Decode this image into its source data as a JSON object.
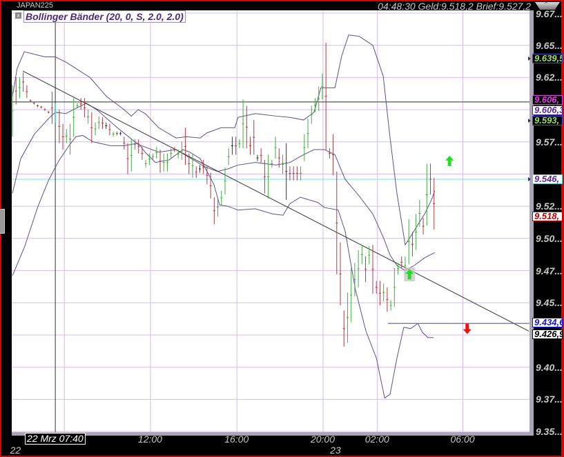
{
  "header": {
    "symbol": "JAPAN225",
    "quote": "04:48:30 Geld:9.518,2 Brief:9.527,2",
    "scroll_up_glyph": "^"
  },
  "indicator": {
    "title": "Bollinger Bänder (20, 0, S, 2.0, 2.0)",
    "close_glyph": "x"
  },
  "price_axis": {
    "labels": [
      {
        "text": "9.67...",
        "price": 9.675
      },
      {
        "text": "9.65...",
        "price": 9.65
      },
      {
        "text": "9.62...",
        "price": 9.625
      },
      {
        "text": "9.57...",
        "price": 9.575
      },
      {
        "text": "9.52...",
        "price": 9.525
      },
      {
        "text": "9.50...",
        "price": 9.5
      },
      {
        "text": "9.47...",
        "price": 9.475
      },
      {
        "text": "9.45...",
        "price": 9.45
      },
      {
        "text": "9.40...",
        "price": 9.4
      },
      {
        "text": "9.37...",
        "price": 9.375
      },
      {
        "text": "9.35...",
        "price": 9.35
      }
    ],
    "flags": [
      {
        "text": "9.639,5",
        "price": 9.6395,
        "color": "#9ee05a",
        "bg": "#000000",
        "border": "#4050c0",
        "marker": true
      },
      {
        "text": "9.606,",
        "price": 9.6075,
        "color": "#e040e0",
        "bg": "#000000",
        "border": "#e040e0",
        "marker": false
      },
      {
        "text": "9.606,3",
        "price": 9.6035,
        "color": "#5a2a9a",
        "bg": "#ffffff",
        "border": "#5a2a9a",
        "marker": false
      },
      {
        "text": "9.593,",
        "price": 9.5935,
        "color": "#9ee05a",
        "bg": "#000000",
        "border": "#4050c0",
        "marker": true
      },
      {
        "text": "9.546,",
        "price": 9.546,
        "color": "#5a2a9a",
        "bg": "#ffffff",
        "border": "#40d0e0",
        "marker": true
      },
      {
        "text": "9.518,",
        "price": 9.5182,
        "color": "#c00000",
        "bg": "#ffffff",
        "border": "#c00000",
        "marker": false
      },
      {
        "text": "9.434,6",
        "price": 9.4346,
        "color": "#1010e0",
        "bg": "#ffffff",
        "border": "#1010e0",
        "marker": false
      },
      {
        "text": "9.426,9",
        "price": 9.4255,
        "color": "#000000",
        "bg": "#ffffff",
        "border": "#000000",
        "marker": false
      }
    ]
  },
  "time_axis": {
    "ticks": [
      {
        "label": "12:00",
        "bar": 38.3
      },
      {
        "label": "16:00",
        "bar": 62.3
      },
      {
        "label": "20:00",
        "bar": 86.2
      },
      {
        "label": "02:00",
        "bar": 101.3
      },
      {
        "label": "06:00",
        "bar": 125
      }
    ],
    "extra_gridlines": [
      14.4
    ],
    "dates": [
      {
        "label": "22",
        "bar": 0.5
      },
      {
        "label": "23",
        "bar": 89.3
      }
    ],
    "crosshair_label": "22 Mrz 07:40"
  },
  "colors": {
    "up": "#3fae3f",
    "down": "#b23a3a",
    "flat": "#333333",
    "band": "#5e4f8a",
    "grid": "#d8b8f0",
    "border": "#e00000",
    "cyan_line": "#70e0f0"
  },
  "chart_data": {
    "type": "ohlc",
    "ylim": [
      9.35,
      9.675
    ],
    "grid": true,
    "bars": [
      [
        9.619,
        9.579,
        "up"
      ],
      [
        9.625,
        9.604,
        "down"
      ],
      [
        9.625,
        9.609,
        "up"
      ],
      [
        9.629,
        9.614,
        "down"
      ],
      [
        9.619,
        9.609,
        "down"
      ],
      [
        9.608,
        9.606,
        "down"
      ],
      [
        9.606,
        9.604,
        "down"
      ],
      [
        9.604,
        9.602,
        "down"
      ],
      [
        9.603,
        9.601,
        "down"
      ],
      [
        9.601,
        9.599,
        "down"
      ],
      [
        9.599,
        9.597,
        "down"
      ],
      [
        9.614,
        9.589,
        "down"
      ],
      [
        9.605,
        9.59,
        "cross"
      ],
      [
        9.6,
        9.574,
        "down"
      ],
      [
        9.589,
        9.569,
        "down"
      ],
      [
        9.585,
        9.574,
        "up"
      ],
      [
        9.589,
        9.565,
        "up"
      ],
      [
        9.609,
        9.579,
        "up"
      ],
      [
        9.605,
        9.601,
        "up"
      ],
      [
        9.609,
        9.6,
        "down"
      ],
      [
        9.609,
        9.594,
        "down"
      ],
      [
        9.6,
        9.589,
        "up"
      ],
      [
        9.598,
        9.574,
        "down"
      ],
      [
        9.59,
        9.58,
        "up"
      ],
      [
        9.595,
        9.585,
        "up"
      ],
      [
        9.594,
        9.585,
        "down"
      ],
      [
        9.59,
        9.585,
        "flat"
      ],
      [
        9.589,
        9.58,
        "down"
      ],
      [
        9.583,
        9.579,
        "up"
      ],
      [
        9.583,
        9.58,
        "down"
      ],
      [
        9.583,
        9.58,
        "flat"
      ],
      [
        9.579,
        9.569,
        "down"
      ],
      [
        9.574,
        9.55,
        "down"
      ],
      [
        9.577,
        9.552,
        "up"
      ],
      [
        9.577,
        9.569,
        "up"
      ],
      [
        9.577,
        9.566,
        "down"
      ],
      [
        9.571,
        9.561,
        "down"
      ],
      [
        9.561,
        9.555,
        "up"
      ],
      [
        9.566,
        9.557,
        "up"
      ],
      [
        9.566,
        9.561,
        "up"
      ],
      [
        9.571,
        9.562,
        "up"
      ],
      [
        9.569,
        9.551,
        "down"
      ],
      [
        9.566,
        9.552,
        "up"
      ],
      [
        9.566,
        9.552,
        "up"
      ],
      [
        9.57,
        9.562,
        "up"
      ],
      [
        9.571,
        9.567,
        "down"
      ],
      [
        9.569,
        9.562,
        "up"
      ],
      [
        9.575,
        9.561,
        "up"
      ],
      [
        9.586,
        9.557,
        "down"
      ],
      [
        9.566,
        9.55,
        "down"
      ],
      [
        9.566,
        9.547,
        "up"
      ],
      [
        9.556,
        9.547,
        "down"
      ],
      [
        9.557,
        9.551,
        "flat"
      ],
      [
        9.561,
        9.55,
        "down"
      ],
      [
        9.556,
        9.542,
        "down"
      ],
      [
        9.551,
        9.531,
        "down"
      ],
      [
        9.532,
        9.511,
        "down"
      ],
      [
        9.532,
        9.517,
        "up"
      ],
      [
        9.537,
        9.526,
        "up"
      ],
      [
        9.555,
        9.534,
        "up"
      ],
      [
        9.57,
        9.557,
        "up"
      ],
      [
        9.579,
        9.565,
        "flat"
      ],
      [
        9.579,
        9.565,
        "down"
      ],
      [
        9.577,
        9.57,
        "up"
      ],
      [
        9.608,
        9.57,
        "up"
      ],
      [
        9.603,
        9.57,
        "down"
      ],
      [
        9.579,
        9.565,
        "down"
      ],
      [
        9.592,
        9.565,
        "down"
      ],
      [
        9.565,
        9.56,
        "flat"
      ],
      [
        9.57,
        9.559,
        "down"
      ],
      [
        9.561,
        9.535,
        "down"
      ],
      [
        9.565,
        9.531,
        "up"
      ],
      [
        9.561,
        9.555,
        "up"
      ],
      [
        9.579,
        9.562,
        "up"
      ],
      [
        9.57,
        9.555,
        "down"
      ],
      [
        9.565,
        9.55,
        "up"
      ],
      [
        9.574,
        9.53,
        "flat"
      ],
      [
        9.556,
        9.545,
        "down"
      ],
      [
        9.556,
        9.545,
        "down"
      ],
      [
        9.556,
        9.545,
        "down"
      ],
      [
        9.556,
        9.545,
        "up"
      ],
      [
        9.581,
        9.56,
        "up"
      ],
      [
        9.593,
        9.57,
        "up"
      ],
      [
        9.603,
        9.589,
        "up"
      ],
      [
        9.609,
        9.598,
        "up"
      ],
      [
        9.618,
        9.599,
        "up"
      ],
      [
        9.628,
        9.608,
        "up"
      ],
      [
        9.652,
        9.569,
        "down"
      ],
      [
        9.57,
        9.562,
        "down"
      ],
      [
        9.581,
        9.549,
        "down"
      ],
      [
        9.552,
        9.472,
        "down"
      ],
      [
        9.497,
        9.448,
        "down"
      ],
      [
        9.444,
        9.416,
        "down"
      ],
      [
        9.458,
        9.419,
        "up"
      ],
      [
        9.477,
        9.435,
        "up"
      ],
      [
        9.481,
        9.455,
        "up"
      ],
      [
        9.491,
        9.462,
        "up"
      ],
      [
        9.495,
        9.48,
        "up"
      ],
      [
        9.486,
        9.466,
        "down"
      ],
      [
        9.494,
        9.48,
        "up"
      ],
      [
        9.495,
        9.457,
        "down"
      ],
      [
        9.467,
        9.457,
        "down"
      ],
      [
        9.467,
        9.448,
        "down"
      ],
      [
        9.465,
        9.451,
        "up"
      ],
      [
        9.462,
        9.443,
        "down"
      ],
      [
        9.452,
        9.444,
        "up"
      ],
      [
        9.477,
        9.447,
        "up"
      ],
      [
        9.481,
        9.472,
        "up"
      ],
      [
        9.486,
        9.477,
        "down"
      ],
      [
        9.486,
        9.472,
        "up"
      ],
      [
        9.515,
        9.48,
        "up"
      ],
      [
        9.505,
        9.486,
        "down"
      ],
      [
        9.519,
        9.491,
        "up"
      ],
      [
        9.53,
        9.509,
        "up"
      ],
      [
        9.516,
        9.503,
        "down"
      ],
      [
        9.558,
        9.51,
        "up"
      ],
      [
        9.558,
        9.534,
        "down"
      ],
      [
        9.547,
        9.507,
        "down"
      ]
    ],
    "bands": {
      "upper": [
        [
          0,
          9.61
        ],
        [
          1.3,
          9.632
        ],
        [
          3.3,
          9.645
        ],
        [
          6.1,
          9.643
        ],
        [
          9,
          9.641
        ],
        [
          11.9,
          9.641
        ],
        [
          14.8,
          9.637
        ],
        [
          17.6,
          9.632
        ],
        [
          21.5,
          9.625
        ],
        [
          26.2,
          9.61
        ],
        [
          31,
          9.6
        ],
        [
          33,
          9.595
        ],
        [
          34.9,
          9.6
        ],
        [
          36.8,
          9.597
        ],
        [
          40.6,
          9.586
        ],
        [
          45.4,
          9.578
        ],
        [
          48.3,
          9.579
        ],
        [
          52.1,
          9.578
        ],
        [
          54,
          9.582
        ],
        [
          57.9,
          9.586
        ],
        [
          61.7,
          9.586
        ],
        [
          62.6,
          9.594
        ],
        [
          67.4,
          9.597
        ],
        [
          73.2,
          9.595
        ],
        [
          77,
          9.594
        ],
        [
          80.8,
          9.592
        ],
        [
          83.7,
          9.598
        ],
        [
          85.6,
          9.617
        ],
        [
          89.5,
          9.617
        ],
        [
          91.4,
          9.642
        ],
        [
          93.3,
          9.658
        ],
        [
          96.2,
          9.657
        ],
        [
          100,
          9.65
        ],
        [
          102.9,
          9.626
        ],
        [
          104.8,
          9.578
        ],
        [
          106.7,
          9.535
        ],
        [
          109,
          9.495
        ],
        [
          111.5,
          9.506
        ],
        [
          114.4,
          9.519
        ],
        [
          116.3,
          9.53
        ],
        [
          117.2,
          9.537
        ]
      ],
      "middle": [
        [
          0,
          9.535
        ],
        [
          2.3,
          9.562
        ],
        [
          6.1,
          9.581
        ],
        [
          10,
          9.593
        ],
        [
          11.9,
          9.598
        ],
        [
          14.8,
          9.597
        ],
        [
          17.6,
          9.601
        ],
        [
          20.5,
          9.605
        ],
        [
          23.4,
          9.6
        ],
        [
          29.1,
          9.586
        ],
        [
          34.9,
          9.573
        ],
        [
          40.6,
          9.567
        ],
        [
          45.4,
          9.569
        ],
        [
          50.2,
          9.561
        ],
        [
          53.1,
          9.556
        ],
        [
          56.9,
          9.552
        ],
        [
          59.8,
          9.554
        ],
        [
          62.6,
          9.557
        ],
        [
          67.4,
          9.559
        ],
        [
          73.2,
          9.557
        ],
        [
          77,
          9.559
        ],
        [
          80.8,
          9.565
        ],
        [
          83.7,
          9.569
        ],
        [
          86.6,
          9.569
        ],
        [
          89.5,
          9.565
        ],
        [
          92.3,
          9.546
        ],
        [
          96.2,
          9.533
        ],
        [
          100,
          9.519
        ],
        [
          102.9,
          9.501
        ],
        [
          104.8,
          9.487
        ],
        [
          106.7,
          9.479
        ],
        [
          109,
          9.475
        ],
        [
          111.5,
          9.479
        ],
        [
          114.4,
          9.485
        ],
        [
          117.2,
          9.489
        ]
      ],
      "lower": [
        [
          0,
          9.471
        ],
        [
          3.3,
          9.493
        ],
        [
          7.1,
          9.525
        ],
        [
          10,
          9.545
        ],
        [
          12.8,
          9.56
        ],
        [
          15.7,
          9.572
        ],
        [
          17.6,
          9.579
        ],
        [
          19.5,
          9.58
        ],
        [
          22.4,
          9.575
        ],
        [
          27.2,
          9.572
        ],
        [
          31,
          9.572
        ],
        [
          34.9,
          9.574
        ],
        [
          36.8,
          9.567
        ],
        [
          39.7,
          9.559
        ],
        [
          43.5,
          9.561
        ],
        [
          47.3,
          9.569
        ],
        [
          49.2,
          9.567
        ],
        [
          52.1,
          9.562
        ],
        [
          54,
          9.552
        ],
        [
          55.9,
          9.542
        ],
        [
          57.5,
          9.526
        ],
        [
          59.8,
          9.525
        ],
        [
          62.6,
          9.522
        ],
        [
          67.4,
          9.523
        ],
        [
          72.2,
          9.519
        ],
        [
          75.1,
          9.518
        ],
        [
          77,
          9.527
        ],
        [
          79.9,
          9.532
        ],
        [
          84.7,
          9.528
        ],
        [
          86.6,
          9.524
        ],
        [
          90.4,
          9.522
        ],
        [
          92.3,
          9.506
        ],
        [
          95.2,
          9.46
        ],
        [
          98.1,
          9.428
        ],
        [
          101,
          9.407
        ],
        [
          103.3,
          9.376
        ],
        [
          104.8,
          9.379
        ],
        [
          106.7,
          9.407
        ],
        [
          108.6,
          9.431
        ],
        [
          110.5,
          9.43
        ],
        [
          112.5,
          9.434
        ],
        [
          113.8,
          9.427
        ],
        [
          115.3,
          9.423
        ],
        [
          116.9,
          9.423
        ]
      ]
    },
    "lines": {
      "trendline": [
        [
          2.9,
          9.63
        ],
        [
          143.3,
          9.428
        ]
      ],
      "support": {
        "from_bar": 104.2,
        "price": 9.434
      },
      "crosshair": {
        "bar": 11.9,
        "price": 9.606
      },
      "cyan_level": 9.546
    },
    "signals": [
      {
        "type": "buy",
        "bar": 121.3,
        "price": 9.56,
        "color": "#22dd22"
      },
      {
        "type": "sell",
        "bar": 126.2,
        "price": 9.43,
        "color": "#ee1111"
      },
      {
        "type": "buy",
        "bar": 110.2,
        "price": 9.472,
        "color": "#22dd22",
        "boxed": true
      }
    ]
  }
}
